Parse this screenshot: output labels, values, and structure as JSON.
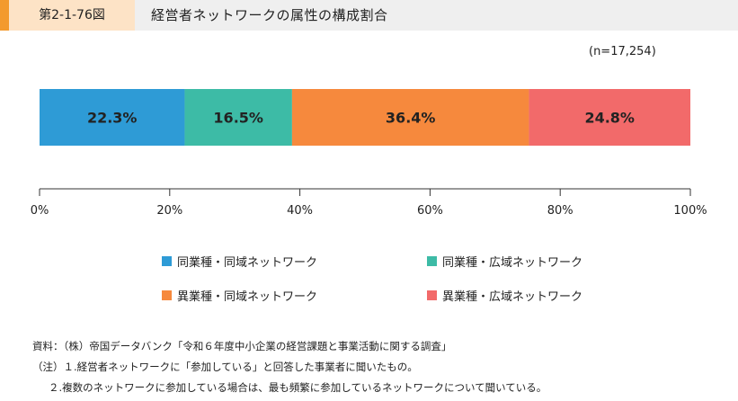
{
  "header": {
    "figure_label": "第2-1-76図",
    "title": "経営者ネットワークの属性の構成割合"
  },
  "colors": {
    "accent": "#f39a2e",
    "label_bg": "#fde3c6",
    "header_bg": "#efefef"
  },
  "chart_data": {
    "type": "bar",
    "orientation": "horizontal-stacked",
    "sample_note": "(n=17,254)",
    "xlim": [
      0,
      100
    ],
    "ticks": [
      "0%",
      "20%",
      "40%",
      "60%",
      "80%",
      "100%"
    ],
    "tick_values": [
      0,
      20,
      40,
      60,
      80,
      100
    ],
    "series": [
      {
        "name": "同業種・同域ネットワーク",
        "value": 22.3,
        "label": "22.3%",
        "color": "#2e9bd6"
      },
      {
        "name": "同業種・広域ネットワーク",
        "value": 16.5,
        "label": "16.5%",
        "color": "#3dbba6"
      },
      {
        "name": "異業種・同域ネットワーク",
        "value": 36.4,
        "label": "36.4%",
        "color": "#f6893d"
      },
      {
        "name": "異業種・広域ネットワーク",
        "value": 24.8,
        "label": "24.8%",
        "color": "#f26a6a"
      }
    ],
    "legend_placement": "bottom",
    "grid": false
  },
  "notes": {
    "source": "資料：（株）帝国データバンク「令和６年度中小企業の経営課題と事業活動に関する調査」",
    "note1": "（注）１.経営者ネットワークに「参加している」と回答した事業者に聞いたもの。",
    "note2": "２.複数のネットワークに参加している場合は、最も頻繁に参加しているネットワークについて聞いている。"
  }
}
